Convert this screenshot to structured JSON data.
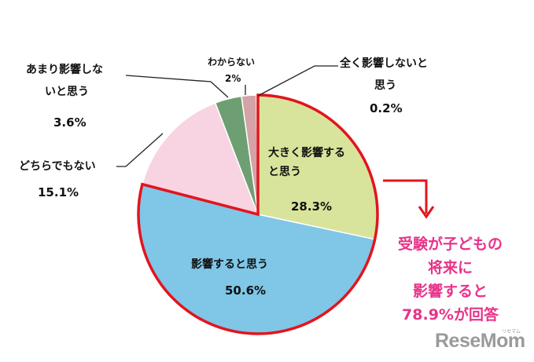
{
  "chart_data": {
    "type": "pie",
    "title": "",
    "start_angle_deg": 0,
    "direction": "clockwise",
    "legend": "none",
    "slices": [
      {
        "label": "大きく影響すると思う",
        "value": 28.3,
        "value_label": "28.3%",
        "color": "#d8e49b",
        "highlight": true
      },
      {
        "label": "影響すると思う",
        "value": 50.6,
        "value_label": "50.6%",
        "color": "#7fc6e7",
        "highlight": true
      },
      {
        "label": "どちらでもない",
        "value": 15.1,
        "value_label": "15.1%",
        "color": "#f8d3e2",
        "highlight": false
      },
      {
        "label": "あまり影響しないと思う",
        "value": 3.6,
        "value_label": "3.6%",
        "color": "#6e9f72",
        "highlight": false
      },
      {
        "label": "わからない",
        "value": 2,
        "value_label": "2%",
        "color": "#d3a3a8",
        "highlight": false
      },
      {
        "label": "全く影響しないと思う",
        "value": 0.2,
        "value_label": "0.2%",
        "color": "#b7b7b7",
        "highlight": false
      }
    ],
    "highlight_color": "#e3141d"
  },
  "labels": {
    "big_line1": "大きく影響する",
    "big_line2": "と思う",
    "big_pct": "28.3%",
    "affect": "影響すると思う",
    "affect_pct": "50.6%",
    "neither": "どちらでもない",
    "neither_pct": "15.1%",
    "little_line1": "あまり影響しな",
    "little_line2": "いと思う",
    "little_pct": "3.6%",
    "unknown": "わからない",
    "unknown_pct": "2%",
    "none_line1": "全く影響しないと",
    "none_line2": "思う",
    "none_pct": "0.2%"
  },
  "callout": {
    "line1": "受験が子どもの",
    "line2": "将来に",
    "line3": "影響すると",
    "line4": "78.9%が回答"
  },
  "brand": {
    "logo": "ReseMom",
    "logo_kana": "リセマム"
  }
}
